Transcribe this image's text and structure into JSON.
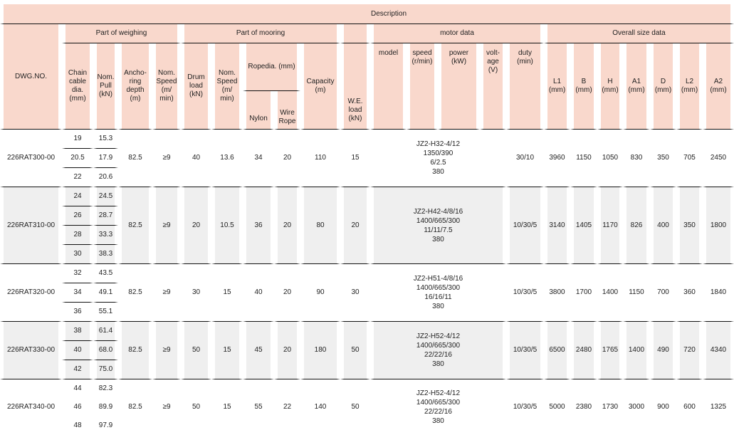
{
  "header": {
    "description": "Description",
    "dwg_no": "DWG.NO.",
    "groups": {
      "weighing": "Part of weighing",
      "mooring": "Part of mooring",
      "motor": "motor data",
      "overall": "Overall size data"
    },
    "columns": {
      "chain": "Chain cable dia. (mm)",
      "pull": "Nom. Pull (kN)",
      "anchoring": "Ancho-ring depth (m)",
      "w_speed": "Nom. Speed (m/ min)",
      "drum": "Drum load (kN)",
      "m_speed": "Nom. Speed (m/ min)",
      "ropedia": "Ropedia. (mm)",
      "nylon": "Nylon",
      "wire": "Wire Rope",
      "capacity": "Capacity (m)",
      "we_load": "W.E. load (kN)",
      "model": "model",
      "speed": "speed (r/min)",
      "power": "power (kW)",
      "voltage": "volt-age (V)",
      "duty": "duty (min)",
      "L1": "L1 (mm)",
      "B": "B (mm)",
      "H": "H (mm)",
      "A1": "A1 (mm)",
      "D": "D (mm)",
      "L2": "L2 (mm)",
      "A2": "A2 (mm)"
    }
  },
  "rows": [
    {
      "dwg": "226RAT300-00",
      "chain": [
        "19",
        "20.5",
        "22"
      ],
      "pull": [
        "15.3",
        "17.9",
        "20.6"
      ],
      "anchoring": "82.5",
      "w_speed": "≥9",
      "drum": "40",
      "m_speed": "13.6",
      "nylon": "34",
      "wire": "20",
      "capacity": "110",
      "we_load": "15",
      "motor": [
        "JZ2-H32-4/12",
        "1350/390",
        "6/2.5",
        "380"
      ],
      "duty": "30/10",
      "L1": "3960",
      "B": "1150",
      "H": "1050",
      "A1": "830",
      "D": "350",
      "L2": "705",
      "A2": "2450"
    },
    {
      "dwg": "226RAT310-00",
      "chain": [
        "24",
        "26",
        "28",
        "30"
      ],
      "pull": [
        "24.5",
        "28.7",
        "33.3",
        "38.3"
      ],
      "anchoring": "82.5",
      "w_speed": "≥9",
      "drum": "20",
      "m_speed": "10.5",
      "nylon": "36",
      "wire": "20",
      "capacity": "80",
      "we_load": "20",
      "motor": [
        "JZ2-H42-4/8/16",
        "1400/665/300",
        "11/11/7.5",
        "380"
      ],
      "duty": "10/30/5",
      "L1": "3140",
      "B": "1405",
      "H": "1170",
      "A1": "826",
      "D": "400",
      "L2": "350",
      "A2": "1800"
    },
    {
      "dwg": "226RAT320-00",
      "chain": [
        "32",
        "34",
        "36"
      ],
      "pull": [
        "43.5",
        "49.1",
        "55.1"
      ],
      "anchoring": "82.5",
      "w_speed": "≥9",
      "drum": "30",
      "m_speed": "15",
      "nylon": "40",
      "wire": "20",
      "capacity": "90",
      "we_load": "30",
      "motor": [
        "JZ2-H51-4/8/16",
        "1400/665/300",
        "16/16/11",
        "380"
      ],
      "duty": "10/30/5",
      "L1": "3800",
      "B": "1700",
      "H": "1400",
      "A1": "1150",
      "D": "700",
      "L2": "360",
      "A2": "1840"
    },
    {
      "dwg": "226RAT330-00",
      "chain": [
        "38",
        "40",
        "42"
      ],
      "pull": [
        "61.4",
        "68.0",
        "75.0"
      ],
      "anchoring": "82.5",
      "w_speed": "≥9",
      "drum": "50",
      "m_speed": "15",
      "nylon": "45",
      "wire": "20",
      "capacity": "180",
      "we_load": "50",
      "motor": [
        "JZ2-H52-4/12",
        "1400/665/300",
        "22/22/16",
        "380"
      ],
      "duty": "10/30/5",
      "L1": "6500",
      "B": "2480",
      "H": "1765",
      "A1": "1400",
      "D": "490",
      "L2": "720",
      "A2": "4340"
    },
    {
      "dwg": "226RAT340-00",
      "chain": [
        "44",
        "46",
        "48"
      ],
      "pull": [
        "82.3",
        "89.9",
        "97.9"
      ],
      "anchoring": "82.5",
      "w_speed": "≥9",
      "drum": "50",
      "m_speed": "15",
      "nylon": "55",
      "wire": "22",
      "capacity": "140",
      "we_load": "50",
      "motor": [
        "JZ2-H52-4/12",
        "1400/665/300",
        "22/22/16",
        "380"
      ],
      "duty": "10/30/5",
      "L1": "5000",
      "B": "2380",
      "H": "1730",
      "A1": "3000",
      "D": "900",
      "L2": "600",
      "A2": "1325"
    }
  ]
}
